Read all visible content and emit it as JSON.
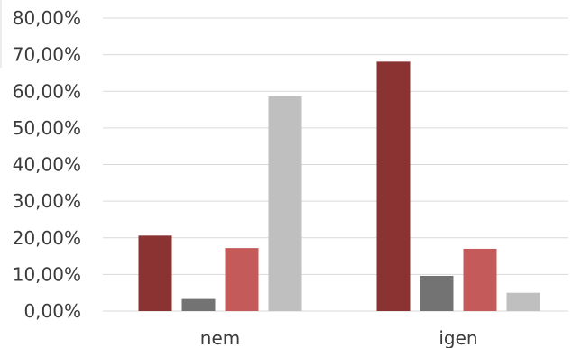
{
  "chart_data": {
    "type": "bar",
    "categories": [
      "nem",
      "igen"
    ],
    "series": [
      {
        "values": [
          20.6,
          68.1
        ],
        "color": "#8b3232"
      },
      {
        "values": [
          3.3,
          9.6
        ],
        "color": "#737373"
      },
      {
        "values": [
          17.2,
          17.0
        ],
        "color": "#c55a5a"
      },
      {
        "values": [
          58.6,
          5.0
        ],
        "color": "#bfbfbf"
      }
    ],
    "ylim": [
      0,
      80
    ],
    "y_ticks": [
      "0,00%",
      "10,00%",
      "20,00%",
      "30,00%",
      "40,00%",
      "50,00%",
      "60,00%",
      "70,00%",
      "80,00%"
    ],
    "y_tick_values": [
      0,
      10,
      20,
      30,
      40,
      50,
      60,
      70,
      80
    ],
    "grid": true,
    "gridline_color": "#d9d9d9",
    "title": "",
    "xlabel": "",
    "ylabel": "",
    "legend": "none"
  }
}
